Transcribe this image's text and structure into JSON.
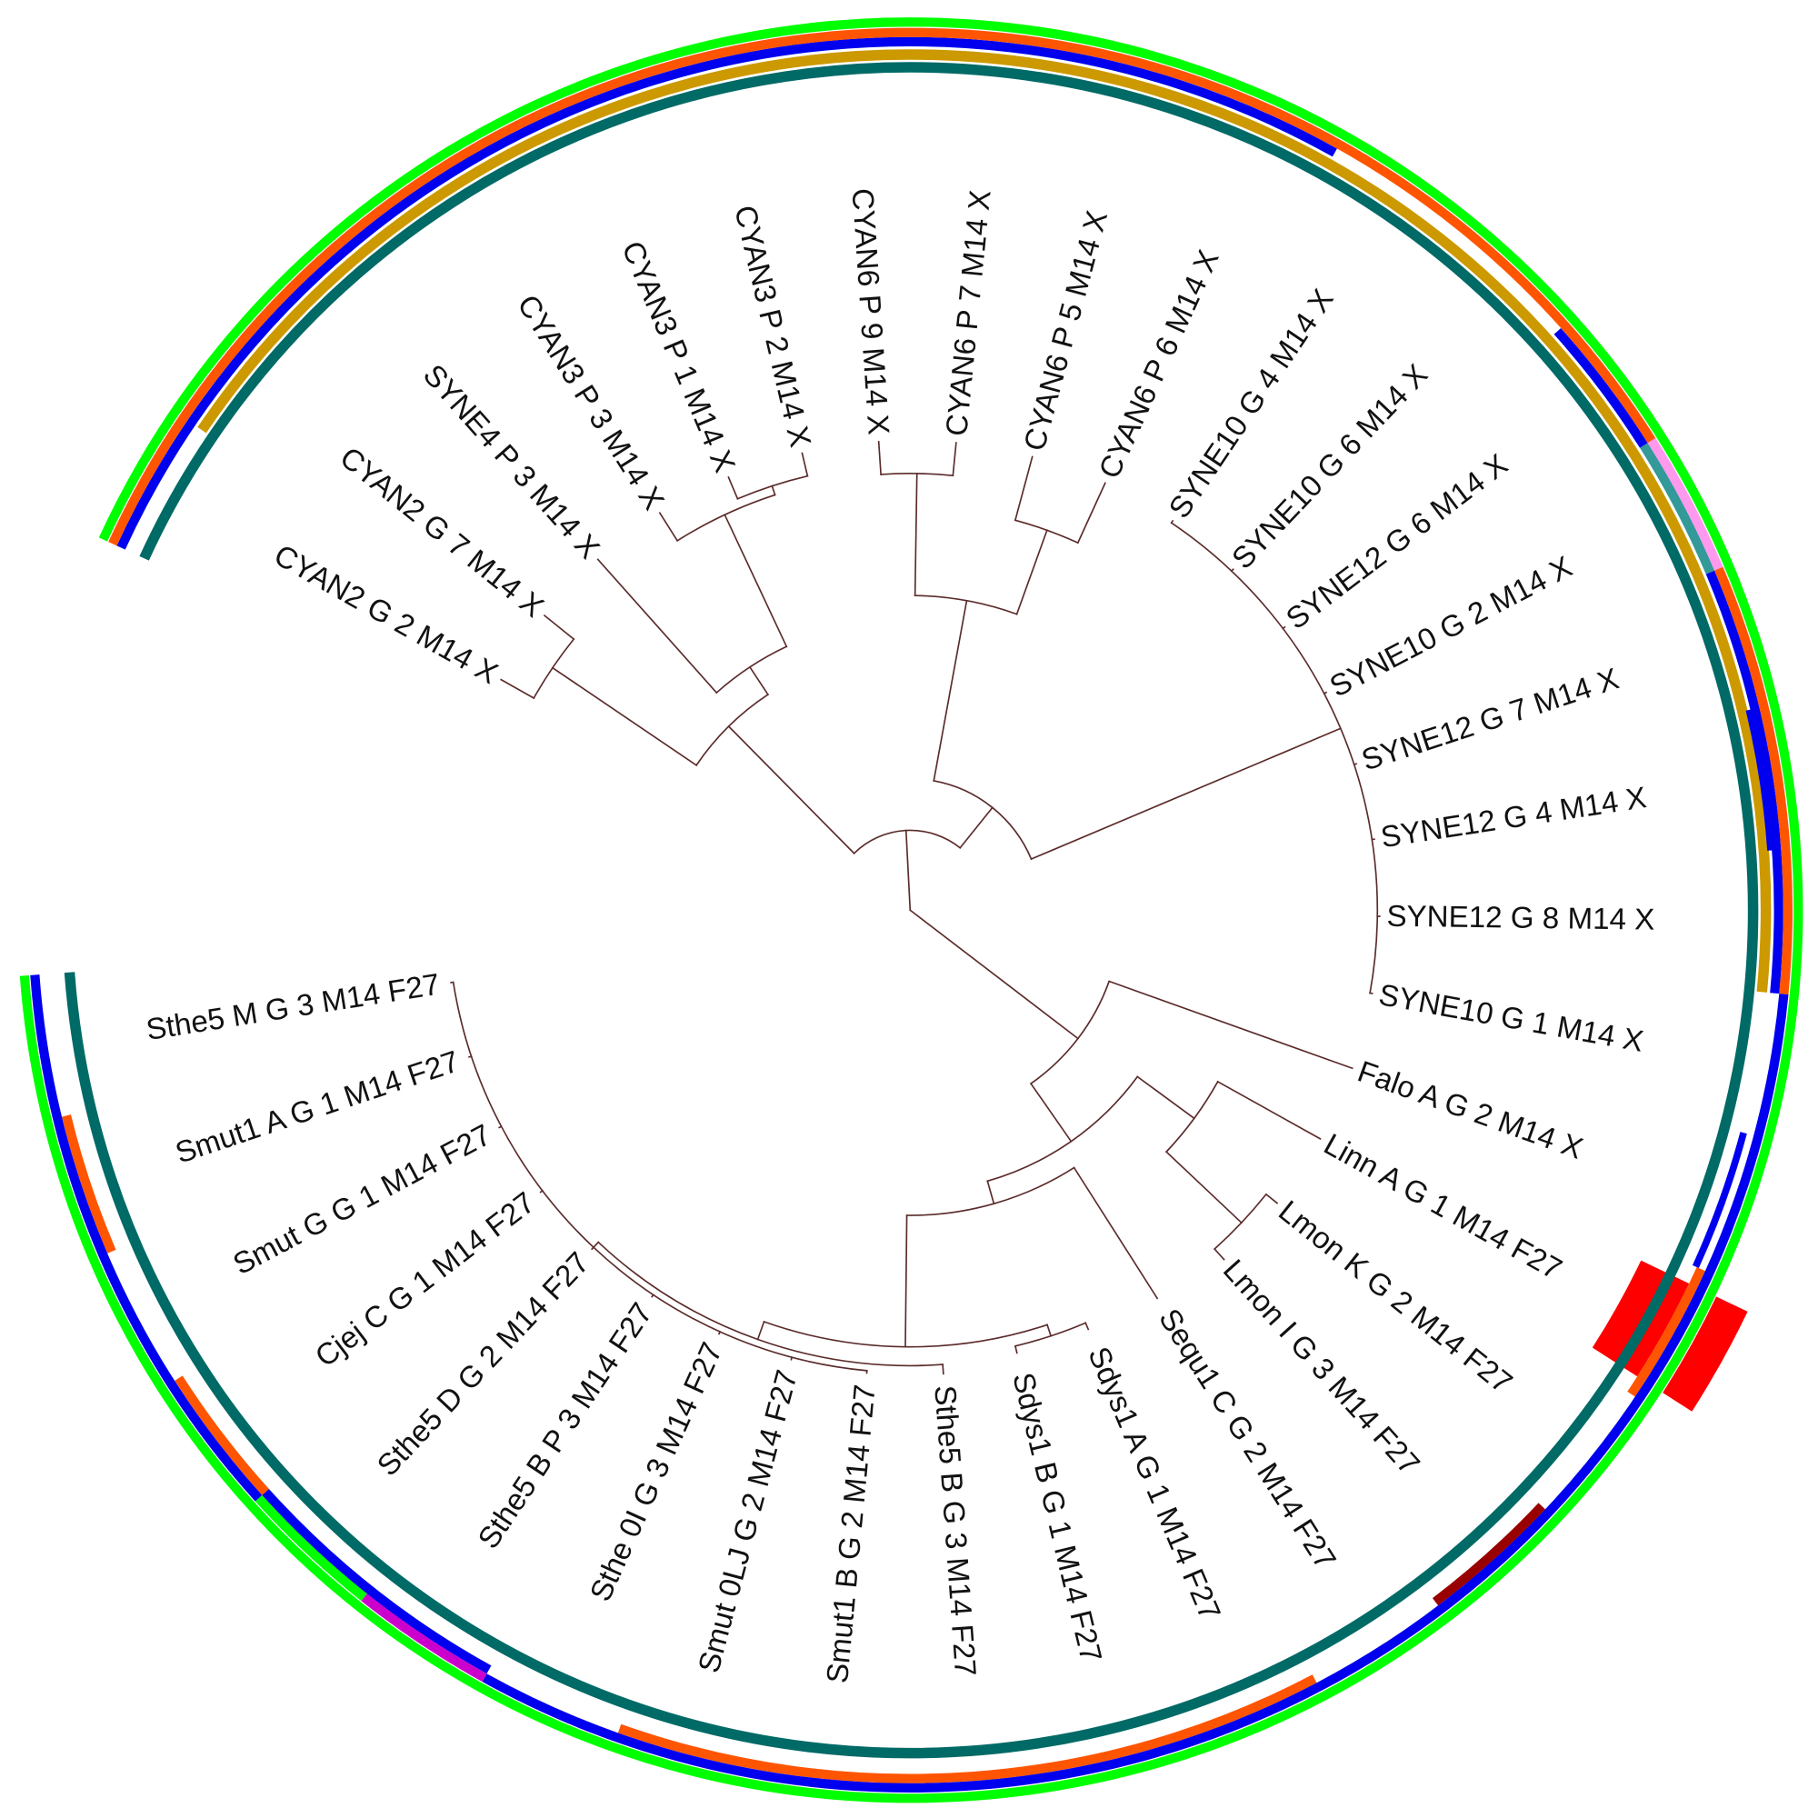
{
  "chart_data": {
    "type": "circular-phylogenetic-tree",
    "branch_color": "#5b2b2b",
    "tree": {
      "depth": 0,
      "children": [
        {
          "depth": 0.17,
          "children": [
            {
              "depth": 0.55,
              "children": [
                {
                  "depth": 0.92,
                  "children": [
                    {
                      "name": "CYAN2 G 2 M14 X",
                      "depth": 1.0
                    },
                    {
                      "name": "CYAN2 G 7 M14 X",
                      "depth": 1.0
                    }
                  ]
                },
                {
                  "depth": 0.62,
                  "children": [
                    {
                      "name": "SYNE4 P 3 M14 X",
                      "depth": 1.0
                    },
                    {
                      "depth": 0.93,
                      "children": [
                        {
                          "name": "CYAN3 P 3 M14 X",
                          "depth": 1.0
                        },
                        {
                          "depth": 0.95,
                          "children": [
                            {
                              "name": "CYAN3 P 1 M14 X",
                              "depth": 1.0
                            },
                            {
                              "name": "CYAN3 P 2 M14 X",
                              "depth": 1.0
                            }
                          ]
                        }
                      ]
                    }
                  ]
                }
              ]
            },
            {
              "depth": 0.28,
              "children": [
                {
                  "depth": 0.67,
                  "children": [
                    {
                      "depth": 0.93,
                      "children": [
                        {
                          "name": "CYAN6 P 9 M14 X",
                          "depth": 1.0
                        },
                        {
                          "name": "CYAN6 P 7 M14 X",
                          "depth": 1.0
                        }
                      ]
                    },
                    {
                      "depth": 0.86,
                      "children": [
                        {
                          "name": "CYAN6 P 5 M14 X",
                          "depth": 1.0
                        },
                        {
                          "name": "CYAN6 P 6 M14 X",
                          "depth": 1.0
                        }
                      ]
                    }
                  ]
                },
                {
                  "depth": 0.995,
                  "children": [
                    {
                      "name": "SYNE10 G 4 M14 X",
                      "depth": 1.0
                    },
                    {
                      "name": "SYNE10 G 6 M14 X",
                      "depth": 1.0
                    },
                    {
                      "name": "SYNE12 G 6 M14 X",
                      "depth": 1.0
                    },
                    {
                      "name": "SYNE10 G 2 M14 X",
                      "depth": 1.0
                    },
                    {
                      "name": "SYNE12 G 7 M14 X",
                      "depth": 1.0
                    },
                    {
                      "name": "SYNE12 G 4 M14 X",
                      "depth": 1.0
                    },
                    {
                      "name": "SYNE12 G 8 M14 X",
                      "depth": 1.0
                    },
                    {
                      "name": "SYNE10 G 1 M14 X",
                      "depth": 1.0
                    }
                  ]
                }
              ]
            }
          ]
        },
        {
          "depth": 0.45,
          "children": [
            {
              "name": "Falo A G 2 M14 X",
              "depth": 1.0
            },
            {
              "depth": 0.6,
              "children": [
                {
                  "depth": 0.75,
                  "children": [
                    {
                      "name": "Linn A G 1 M14 F27",
                      "depth": 1.0
                    },
                    {
                      "depth": 0.97,
                      "children": [
                        {
                          "name": "Lmon K G 2 M14 F27",
                          "depth": 1.0
                        },
                        {
                          "name": "Lmon I G 3 M14 F27",
                          "depth": 1.0
                        }
                      ]
                    }
                  ]
                },
                {
                  "depth": 0.65,
                  "children": [
                    {
                      "name": "Sequ1 C G 2 M14 F27",
                      "depth": 0.98
                    },
                    {
                      "depth": 0.93,
                      "children": [
                        {
                          "depth": 0.955,
                          "children": [
                            {
                              "name": "Sdys1 A G 1 M14 F27",
                              "depth": 0.97
                            },
                            {
                              "name": "Sdys1 B G 1 M14 F27",
                              "depth": 0.97
                            }
                          ]
                        },
                        {
                          "depth": 0.97,
                          "children": [
                            {
                              "name": "Sthe5 B G 3 M14 F27",
                              "depth": 0.99
                            },
                            {
                              "depth": 0.985,
                              "children": [
                                {
                                  "name": "Smut1 B G 2 M14 F27",
                                  "depth": 0.99
                                },
                                {
                                  "name": "Smut 0LJ G 2 M14 F27",
                                  "depth": 0.99
                                },
                                {
                                  "name": "Sthe 0I G 3 M14 F27",
                                  "depth": 0.99
                                },
                                {
                                  "name": "Sthe5 B P 3 M14 F27",
                                  "depth": 0.99
                                },
                                {
                                  "name": "Sthe5 D G 2 M14 F27",
                                  "depth": 0.99
                                },
                                {
                                  "name": "Cjej C G 1 M14 F27",
                                  "depth": 0.99
                                },
                                {
                                  "name": "Smut G G 1 M14 F27",
                                  "depth": 0.99
                                },
                                {
                                  "name": "Smut1 A G 1 M14 F27",
                                  "depth": 0.99
                                },
                                {
                                  "name": "Sthe5 M G 3 M14 F27",
                                  "depth": 0.99
                                }
                              ]
                            }
                          ]
                        }
                      ]
                    }
                  ]
                }
              ]
            }
          ]
        }
      ]
    },
    "leaf_order_clockwise_from": "Falo A G 2 M14 X",
    "annotation_rings": [
      {
        "color": "#ff0000",
        "ring": 0,
        "from_leaf": 19,
        "to_leaf": 19
      },
      {
        "color": "#ff0000",
        "ring": 6,
        "from_leaf": 19,
        "to_leaf": 19
      },
      {
        "color": "#006a66",
        "ring": 1,
        "from_leaf": 0,
        "to_leaf": 34
      },
      {
        "color": "#cc9900",
        "ring": 2,
        "from_leaf": 1,
        "to_leaf": 16
      },
      {
        "color": "#0000ee",
        "ring": 2.5,
        "from_leaf": 15,
        "to_leaf": 15
      },
      {
        "color": "#0000ee",
        "ring": 2.5,
        "from_leaf": 18,
        "to_leaf": 18
      },
      {
        "color": "#0000ee",
        "ring": 3,
        "from_leaf": 0,
        "to_leaf": 9
      },
      {
        "color": "#0000ee",
        "ring": 3,
        "from_leaf": 12,
        "to_leaf": 12
      },
      {
        "color": "#339999",
        "ring": 3,
        "from_leaf": 13,
        "to_leaf": 13
      },
      {
        "color": "#0000ee",
        "ring": 3,
        "from_leaf": 14,
        "to_leaf": 16
      },
      {
        "color": "#ff5500",
        "ring": 3,
        "from_leaf": 19,
        "to_leaf": 19
      },
      {
        "color": "#990000",
        "ring": 3,
        "from_leaf": 21,
        "to_leaf": 21
      },
      {
        "color": "#ff5500",
        "ring": 3,
        "from_leaf": 23,
        "to_leaf": 27
      },
      {
        "color": "#0000ee",
        "ring": 3,
        "from_leaf": 29,
        "to_leaf": 30
      },
      {
        "color": "#ff5500",
        "ring": 3,
        "from_leaf": 31,
        "to_leaf": 31
      },
      {
        "color": "#ff5500",
        "ring": 3,
        "from_leaf": 33,
        "to_leaf": 33
      },
      {
        "color": "#ff5500",
        "ring": 4,
        "from_leaf": 0,
        "to_leaf": 12
      },
      {
        "color": "#ff99ee",
        "ring": 4,
        "from_leaf": 13,
        "to_leaf": 13
      },
      {
        "color": "#ff5500",
        "ring": 4,
        "from_leaf": 14,
        "to_leaf": 16
      },
      {
        "color": "#0000ee",
        "ring": 4,
        "from_leaf": 17,
        "to_leaf": 28
      },
      {
        "color": "#cc00cc",
        "ring": 4,
        "from_leaf": 29,
        "to_leaf": 29
      },
      {
        "color": "#00ff00",
        "ring": 4,
        "from_leaf": 30,
        "to_leaf": 30
      },
      {
        "color": "#0000ee",
        "ring": 4,
        "from_leaf": 31,
        "to_leaf": 34
      },
      {
        "color": "#00ff00",
        "ring": 5,
        "from_leaf": 0,
        "to_leaf": 34
      }
    ]
  }
}
